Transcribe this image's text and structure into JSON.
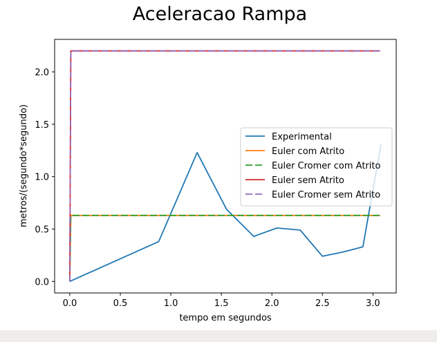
{
  "chart_data": {
    "type": "line",
    "title": "Aceleracao Rampa",
    "xlabel": "tempo em segundos",
    "ylabel": "metros/(segundo*segundo)",
    "xlim": [
      -0.15,
      3.23
    ],
    "ylim": [
      -0.11,
      2.31
    ],
    "xticks": [
      "0.0",
      "0.5",
      "1.0",
      "1.5",
      "2.0",
      "2.5",
      "3.0"
    ],
    "xtick_values": [
      0.0,
      0.5,
      1.0,
      1.5,
      2.0,
      2.5,
      3.0
    ],
    "yticks": [
      "0.0",
      "0.5",
      "1.0",
      "1.5",
      "2.0"
    ],
    "ytick_values": [
      0.0,
      0.5,
      1.0,
      1.5,
      2.0
    ],
    "grid": false,
    "legend_position": "center-right",
    "series": [
      {
        "name": "Experimental",
        "color": "#1f77b4",
        "dash": "solid",
        "x": [
          0.0,
          0.88,
          1.26,
          1.55,
          1.82,
          2.05,
          2.28,
          2.5,
          2.7,
          2.9,
          3.08
        ],
        "y": [
          0.0,
          0.38,
          1.23,
          0.69,
          0.43,
          0.51,
          0.49,
          0.24,
          0.28,
          0.33,
          1.31
        ]
      },
      {
        "name": "Euler com Atrito",
        "color": "#ff7f0e",
        "dash": "solid",
        "x": [
          0.0,
          0.01,
          3.07
        ],
        "y": [
          0.0,
          0.63,
          0.63
        ]
      },
      {
        "name": "Euler Cromer com Atrito",
        "color": "#2ca02c",
        "dash": "dashed",
        "x": [
          0.0,
          0.01,
          3.07
        ],
        "y": [
          0.0,
          0.63,
          0.63
        ]
      },
      {
        "name": "Euler sem Atrito",
        "color": "#d62728",
        "dash": "solid",
        "x": [
          0.0,
          0.01,
          3.07
        ],
        "y": [
          0.0,
          2.2,
          2.2
        ]
      },
      {
        "name": "Euler Cromer sem Atrito",
        "color": "#9467bd",
        "dash": "dashed",
        "x": [
          0.0,
          0.01,
          3.07
        ],
        "y": [
          0.0,
          2.2,
          2.2
        ]
      }
    ]
  }
}
